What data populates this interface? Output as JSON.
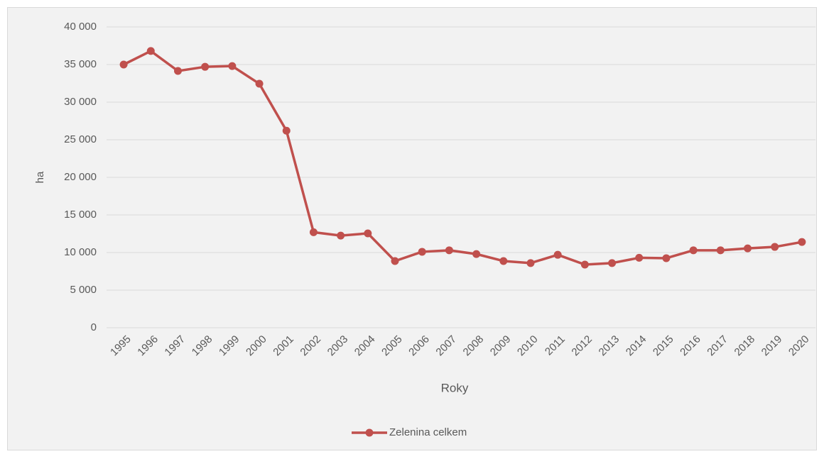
{
  "chart_data": {
    "type": "line",
    "categories": [
      "1995",
      "1996",
      "1997",
      "1998",
      "1999",
      "2000",
      "2001",
      "2002",
      "2003",
      "2004",
      "2005",
      "2006",
      "2007",
      "2008",
      "2009",
      "2010",
      "2011",
      "2012",
      "2013",
      "2014",
      "2015",
      "2016",
      "2017",
      "2018",
      "2019",
      "2020"
    ],
    "series": [
      {
        "name": "Zelenina celkem",
        "color": "#c0504d",
        "values": [
          35000,
          36800,
          34150,
          34700,
          34800,
          32450,
          26200,
          12700,
          12250,
          12550,
          8870,
          10100,
          10300,
          9800,
          8870,
          8600,
          9700,
          8400,
          8600,
          9300,
          9250,
          10300,
          10300,
          10550,
          10750,
          11400
        ]
      }
    ],
    "x_label": "Roky",
    "y_label": "ha",
    "ylim": [
      0,
      40000
    ],
    "yticks": [
      0,
      {
        "value": 5000,
        "label": "5 000"
      },
      {
        "value": 10000,
        "label": "10 000"
      },
      {
        "value": 15000,
        "label": "15 000"
      },
      {
        "value": 20000,
        "label": "20 000"
      },
      {
        "value": 25000,
        "label": "25 000"
      },
      {
        "value": 30000,
        "label": "30 000"
      },
      {
        "value": 35000,
        "label": "35 000"
      },
      {
        "value": 40000,
        "label": "40 000"
      }
    ],
    "grid": true,
    "legend": "bottom"
  }
}
